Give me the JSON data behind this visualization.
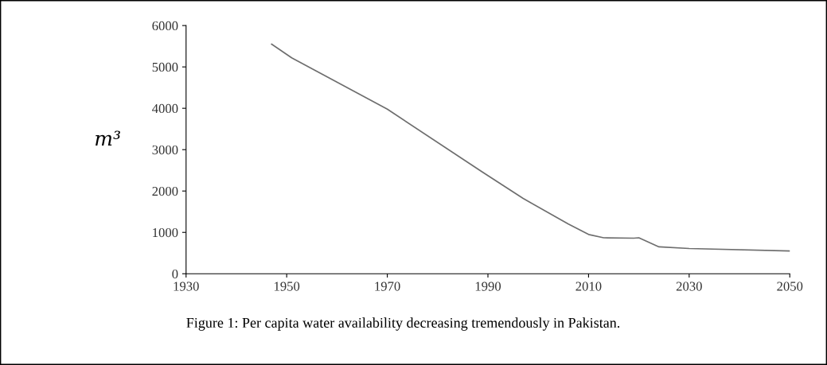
{
  "chart_data": {
    "type": "line",
    "ylabel": "m³",
    "annotations": [
      "Figure 1: Per capita water availability decreasing tremendously in Pakistan."
    ],
    "x": [
      1947,
      1951,
      1970,
      1989,
      1997,
      2006,
      2010,
      2013,
      2019,
      2020,
      2024,
      2030,
      2050
    ],
    "series": [
      {
        "color": "#6e6e6e",
        "values": [
          5550,
          5220,
          3980,
          2450,
          1820,
          1200,
          950,
          870,
          860,
          870,
          650,
          610,
          550
        ]
      }
    ],
    "xlim": [
      1930,
      2050
    ],
    "xticks": [
      1930,
      1950,
      1970,
      1990,
      2010,
      2030,
      2050
    ],
    "ylim": [
      0,
      6000
    ],
    "yticks": [
      0,
      1000,
      2000,
      3000,
      4000,
      5000,
      6000
    ],
    "grid": false,
    "legend": false,
    "marker": "none",
    "line_style": "solid"
  }
}
